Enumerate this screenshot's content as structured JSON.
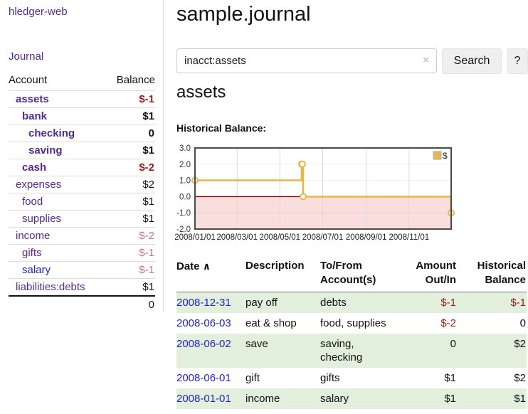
{
  "app": {
    "title": "hledger-web"
  },
  "sidebar": {
    "journal_link": "Journal",
    "table": {
      "account_header": "Account",
      "balance_header": "Balance",
      "rows": [
        {
          "account": "assets",
          "balance": "$-1"
        },
        {
          "account": "bank",
          "balance": "$1"
        },
        {
          "account": "checking",
          "balance": "0"
        },
        {
          "account": "saving",
          "balance": "$1"
        },
        {
          "account": "cash",
          "balance": "$-2"
        },
        {
          "account": "expenses",
          "balance": "$2"
        },
        {
          "account": "food",
          "balance": "$1"
        },
        {
          "account": "supplies",
          "balance": "$1"
        },
        {
          "account": "income",
          "balance": "$-2"
        },
        {
          "account": "gifts",
          "balance": "$-1"
        },
        {
          "account": "salary",
          "balance": "$-1"
        },
        {
          "account": "liabilities:debts",
          "balance": "$1"
        }
      ],
      "total": "0"
    }
  },
  "main": {
    "title": "sample.journal",
    "search": {
      "value": "inacct:assets",
      "clear_icon": "×",
      "button_label": "Search",
      "help_label": "?"
    },
    "account_heading": "assets",
    "chart_label": "Historical Balance:",
    "register": {
      "headers": {
        "date": "Date",
        "sort_icon": "∧",
        "description": "Description",
        "accounts": "To/From Account(s)",
        "amount": "Amount Out/In",
        "balance": "Historical Balance"
      },
      "rows": [
        {
          "date": "2008-12-31",
          "description": "pay off",
          "accounts": "debts",
          "amount": "$-1",
          "balance": "$-1"
        },
        {
          "date": "2008-06-03",
          "description": "eat & shop",
          "accounts": "food, supplies",
          "amount": "$-2",
          "balance": "0"
        },
        {
          "date": "2008-06-02",
          "description": "save",
          "accounts": "saving, checking",
          "amount": "0",
          "balance": "$2"
        },
        {
          "date": "2008-06-01",
          "description": "gift",
          "accounts": "gifts",
          "amount": "$1",
          "balance": "$2"
        },
        {
          "date": "2008-01-01",
          "description": "income",
          "accounts": "salary",
          "amount": "$1",
          "balance": "$1"
        }
      ]
    }
  },
  "chart_data": {
    "type": "line",
    "subtype": "step-after",
    "title": "Historical Balance",
    "series": [
      {
        "name": "$",
        "color": "#e3b84e",
        "points": [
          [
            "2008-01-01",
            1
          ],
          [
            "2008-06-01",
            2
          ],
          [
            "2008-06-02",
            2
          ],
          [
            "2008-06-03",
            0
          ],
          [
            "2008-12-31",
            -1
          ]
        ]
      }
    ],
    "xrange": [
      "2008-01-01",
      "2008-12-31"
    ],
    "ylim": [
      -2,
      3
    ],
    "yticks": [
      3.0,
      2.0,
      1.0,
      0.0,
      -1.0,
      -2.0
    ],
    "xticks": [
      "2008/01/01",
      "2008/03/01",
      "2008/05/01",
      "2008/07/01",
      "2008/09/01",
      "2008/11/01"
    ],
    "grid": true,
    "legend_position": "top-right",
    "negative_fill": "#fadddd",
    "zero_line_color": "#8b0000"
  },
  "colors": {
    "link_purple": "#552a93",
    "link_blue": "#2222cc",
    "negative_strong": "#9d1b1b",
    "negative_soft": "#bd7b7b",
    "row_green": "#e2efdc",
    "chart_gold": "#e3b84e",
    "chart_negative_region": "#fadddd"
  }
}
